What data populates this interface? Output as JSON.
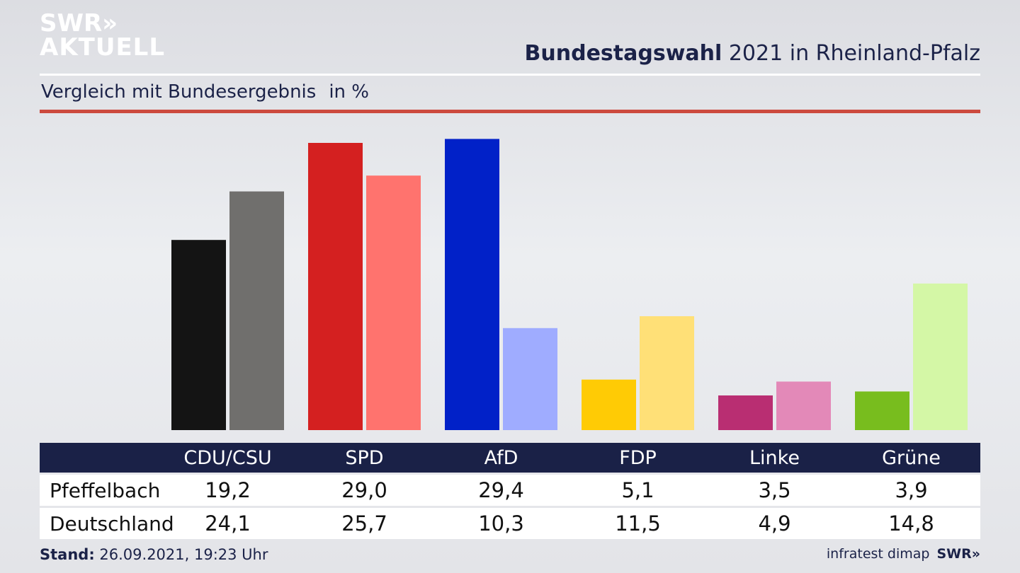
{
  "logo": {
    "line1": "SWR»",
    "line2": "AKTUELL"
  },
  "header": {
    "title_bold": "Bundestagswahl",
    "title_rest": " 2021 in Rheinland-Pfalz",
    "subtitle": "Vergleich mit Bundesergebnis",
    "unit": "in %"
  },
  "colors": {
    "header_bg": "#1a2147",
    "accent_red": "#cc4a3e",
    "local": [
      "#141414",
      "#d42020",
      "#0121c8",
      "#ffcb05",
      "#b92e72",
      "#78bd1e"
    ],
    "national": [
      "#706f6d",
      "#ff736e",
      "#9facff",
      "#ffe077",
      "#e389b8",
      "#d4f7a6"
    ]
  },
  "chart_data": {
    "type": "bar",
    "categories": [
      "CDU/CSU",
      "SPD",
      "AfD",
      "FDP",
      "Linke",
      "Grüne"
    ],
    "series": [
      {
        "name": "Pfeffelbach",
        "values": [
          19.2,
          29.0,
          29.4,
          5.1,
          3.5,
          3.9
        ]
      },
      {
        "name": "Deutschland",
        "values": [
          24.1,
          25.7,
          10.3,
          11.5,
          4.9,
          14.8
        ]
      }
    ],
    "ylim": [
      0,
      30
    ],
    "grid": false,
    "legend": "none",
    "labels": {
      "Pfeffelbach": [
        "19,2",
        "29,0",
        "29,4",
        "5,1",
        "3,5",
        "3,9"
      ],
      "Deutschland": [
        "24,1",
        "25,7",
        "10,3",
        "11,5",
        "4,9",
        "14,8"
      ]
    }
  },
  "footer": {
    "stand_label": "Stand:",
    "stand_value": " 26.09.2021, 19:23 Uhr",
    "source": "infratest dimap",
    "brand": "SWR»"
  }
}
